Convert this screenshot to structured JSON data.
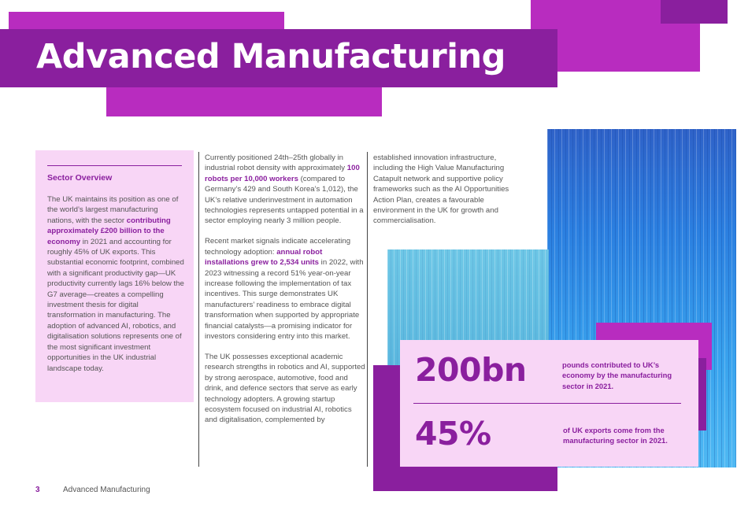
{
  "title": "Advanced Manufacturing",
  "colors": {
    "brand_purple": "#8a1f9e",
    "magenta": "#b82cbf",
    "light_pink": "#f8d6f6",
    "photo_blue": "#3fa9e8",
    "photo_dark_blue": "#1e6fd0"
  },
  "sidebar": {
    "heading": "Sector Overview",
    "p1_before": "The UK maintains its position as one of the world’s largest manufacturing nations, with the sector ",
    "p1_highlight": "contributing approximately £200 billion to the economy",
    "p1_after": " in 2021 and accounting for roughly 45% of UK exports. This substantial economic footprint, combined with a significant productivity gap—UK productivity currently lags 16% below the G7 average—creates a compelling investment thesis for digital transformation in manufacturing. The adoption of advanced AI, robotics, and digitalisation solutions represents one of the most significant investment opportunities in the UK industrial landscape today."
  },
  "column1": {
    "p1_before": "Currently positioned 24th–25th globally in industrial robot density with approximately ",
    "p1_highlight": "100 robots per 10,000 workers",
    "p1_after": " (compared to Germany’s 429 and South Korea’s 1,012), the UK’s relative underinvestment in automation technologies represents untapped potential in a sector employing nearly 3 million people.",
    "p2_before": "Recent market signals indicate accelerating technology adoption: ",
    "p2_highlight": "annual robot installations grew to 2,534 units",
    "p2_after": " in 2022, with 2023 witnessing a record 51% year-on-year increase following the implementation of tax incentives. This surge demonstrates UK manufacturers’ readiness to embrace digital transformation when supported by appropriate financial catalysts—a promising indicator for investors considering entry into this market.",
    "p3": "The UK possesses exceptional academic research strengths in robotics and AI, supported by strong aerospace, automotive, food and drink, and defence sectors that serve as early technology adopters. A growing startup ecosystem focused on industrial AI, robotics and digitalisation, complemented by"
  },
  "column2": {
    "p1": "established innovation infrastructure, including the High Value Manufacturing Catapult network and supportive policy frameworks such as the AI Opportunities Action Plan, creates a favourable environment in the UK for growth and commercialisation."
  },
  "stats": [
    {
      "value": "200bn",
      "description": "pounds contributed to UK’s economy by the manufacturing sector in 2021."
    },
    {
      "value": "45%",
      "description": "of UK exports come from the manufacturing sector in 2021."
    }
  ],
  "footer": {
    "page_number": "3",
    "title": "Advanced Manufacturing"
  }
}
